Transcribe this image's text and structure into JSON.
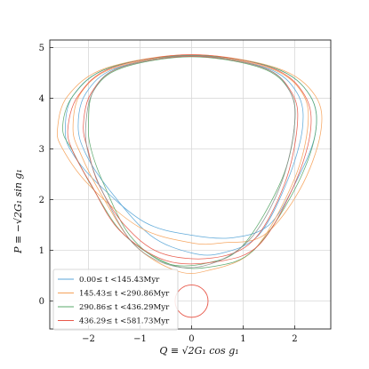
{
  "chart_data": {
    "type": "line",
    "xlabel": "Q ≡ √2G₁ cos g₁",
    "ylabel": "P ≡ −√2G₁ sin g₁",
    "xlim": [
      -2.75,
      2.7
    ],
    "ylim": [
      -0.55,
      5.15
    ],
    "x_ticks": [
      -2,
      -1,
      0,
      1,
      2
    ],
    "x_tick_labels": [
      "−2",
      "−1",
      "0",
      "1",
      "2"
    ],
    "y_ticks": [
      0,
      1,
      2,
      3,
      4,
      5
    ],
    "y_tick_labels": [
      "0",
      "1",
      "2",
      "3",
      "4",
      "5"
    ],
    "grid": true,
    "legend_position": "lower-left",
    "colors": {
      "grid": "#d9d9d9",
      "reference_circle": "#e8584a"
    },
    "reference_circle": {
      "center": [
        0.0,
        0.0
      ],
      "radius": 0.32
    },
    "series": [
      {
        "name": "0.00≤ t <145.43Myr",
        "color": "#5aa6d8",
        "loops": [
          [
            [
              -2.45,
              3.35
            ],
            [
              -2.3,
              4.05
            ],
            [
              -1.6,
              4.6
            ],
            [
              0.0,
              4.85
            ],
            [
              1.6,
              4.6
            ],
            [
              2.3,
              4.05
            ],
            [
              2.4,
              3.3
            ],
            [
              2.0,
              2.3
            ],
            [
              1.5,
              1.5
            ],
            [
              0.8,
              1.25
            ],
            [
              0.0,
              1.3
            ],
            [
              -0.9,
              1.55
            ],
            [
              -1.8,
              2.3
            ],
            [
              -2.3,
              2.9
            ]
          ],
          [
            [
              -2.2,
              3.45
            ],
            [
              -2.05,
              4.1
            ],
            [
              -1.45,
              4.6
            ],
            [
              0.0,
              4.83
            ],
            [
              1.45,
              4.6
            ],
            [
              2.05,
              4.1
            ],
            [
              2.15,
              3.4
            ],
            [
              1.85,
              2.35
            ],
            [
              1.3,
              1.3
            ],
            [
              0.6,
              0.95
            ],
            [
              0.0,
              0.95
            ],
            [
              -0.8,
              1.3
            ],
            [
              -1.6,
              2.2
            ],
            [
              -2.05,
              2.9
            ]
          ]
        ]
      },
      {
        "name": "145.43≤ t <290.86Myr",
        "color": "#f5a25a",
        "loops": [
          [
            [
              -2.6,
              3.4
            ],
            [
              -2.4,
              4.05
            ],
            [
              -1.65,
              4.6
            ],
            [
              0.0,
              4.86
            ],
            [
              1.65,
              4.6
            ],
            [
              2.4,
              4.05
            ],
            [
              2.5,
              3.3
            ],
            [
              2.1,
              2.2
            ],
            [
              1.4,
              1.3
            ],
            [
              0.6,
              1.15
            ],
            [
              0.0,
              1.15
            ],
            [
              -1.0,
              1.45
            ],
            [
              -2.0,
              2.3
            ],
            [
              -2.5,
              3.0
            ]
          ],
          [
            [
              -2.3,
              3.4
            ],
            [
              -2.15,
              4.1
            ],
            [
              -1.5,
              4.6
            ],
            [
              0.0,
              4.84
            ],
            [
              1.5,
              4.6
            ],
            [
              2.15,
              4.1
            ],
            [
              2.25,
              3.4
            ],
            [
              1.95,
              2.3
            ],
            [
              1.2,
              1.0
            ],
            [
              0.3,
              0.6
            ],
            [
              -0.3,
              0.6
            ],
            [
              -1.1,
              1.1
            ],
            [
              -1.75,
              2.1
            ],
            [
              -2.15,
              2.9
            ]
          ]
        ]
      },
      {
        "name": "290.86≤ t <436.29Myr",
        "color": "#5aa86a",
        "loops": [
          [
            [
              -2.5,
              3.4
            ],
            [
              -2.3,
              4.05
            ],
            [
              -1.6,
              4.6
            ],
            [
              0.0,
              4.85
            ],
            [
              1.6,
              4.6
            ],
            [
              2.3,
              4.05
            ],
            [
              2.4,
              3.3
            ],
            [
              2.0,
              2.2
            ],
            [
              1.2,
              1.0
            ],
            [
              0.4,
              0.68
            ],
            [
              -0.4,
              0.72
            ],
            [
              -1.3,
              1.3
            ],
            [
              -1.9,
              2.2
            ],
            [
              -2.3,
              2.95
            ]
          ],
          [
            [
              -2.0,
              3.5
            ],
            [
              -1.9,
              4.15
            ],
            [
              -1.35,
              4.6
            ],
            [
              0.0,
              4.82
            ],
            [
              1.35,
              4.6
            ],
            [
              1.9,
              4.15
            ],
            [
              2.0,
              3.5
            ],
            [
              1.75,
              2.4
            ],
            [
              1.0,
              1.1
            ],
            [
              0.3,
              0.75
            ],
            [
              -0.5,
              0.75
            ],
            [
              -1.2,
              1.3
            ],
            [
              -1.7,
              2.3
            ],
            [
              -1.95,
              3.0
            ]
          ]
        ]
      },
      {
        "name": "436.29≤ t <581.73Myr",
        "color": "#e8584a",
        "loops": [
          [
            [
              -2.4,
              3.4
            ],
            [
              -2.2,
              4.05
            ],
            [
              -1.55,
              4.6
            ],
            [
              0.0,
              4.86
            ],
            [
              1.55,
              4.6
            ],
            [
              2.2,
              4.05
            ],
            [
              2.3,
              3.3
            ],
            [
              1.95,
              2.2
            ],
            [
              1.3,
              1.1
            ],
            [
              0.5,
              0.78
            ],
            [
              -0.5,
              0.8
            ],
            [
              -1.4,
              1.4
            ],
            [
              -1.95,
              2.3
            ],
            [
              -2.3,
              2.95
            ]
          ],
          [
            [
              -2.1,
              3.45
            ],
            [
              -1.95,
              4.1
            ],
            [
              -1.4,
              4.6
            ],
            [
              0.0,
              4.83
            ],
            [
              1.4,
              4.6
            ],
            [
              1.95,
              4.1
            ],
            [
              2.05,
              3.45
            ],
            [
              1.8,
              2.3
            ],
            [
              1.2,
              1.2
            ],
            [
              0.4,
              0.85
            ],
            [
              -0.6,
              0.95
            ],
            [
              -1.3,
              1.5
            ],
            [
              -1.8,
              2.3
            ],
            [
              -2.0,
              2.95
            ]
          ]
        ]
      },
      {
        "name": "",
        "color": "#8c8c8c",
        "loops": [
          [
            [
              -2.05,
              3.5
            ],
            [
              -1.9,
              4.15
            ],
            [
              -1.4,
              4.6
            ],
            [
              0.0,
              4.84
            ],
            [
              1.4,
              4.6
            ],
            [
              1.9,
              4.15
            ],
            [
              2.0,
              3.5
            ],
            [
              1.75,
              2.35
            ],
            [
              1.2,
              1.3
            ],
            [
              0.5,
              0.78
            ],
            [
              -0.3,
              0.68
            ],
            [
              -1.1,
              1.1
            ],
            [
              -1.7,
              2.1
            ],
            [
              -2.0,
              2.9
            ]
          ]
        ]
      }
    ]
  }
}
